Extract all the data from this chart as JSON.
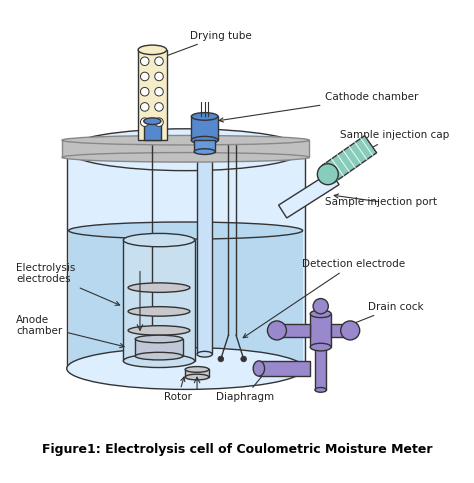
{
  "title": "Figure1: Electrolysis cell of Coulometric Moisture Meter",
  "bg_color": "#ffffff",
  "fig_width": 4.74,
  "fig_height": 4.83,
  "labels": {
    "drying_tube": "Drying tube",
    "cathode_chamber": "Cathode chamber",
    "sample_injection_cap": "Sample injection cap",
    "sample_injection_port": "Sample injection port",
    "detection_electrode": "Detection electrode",
    "electrolysis_electrodes": "Electrolysis\nelectrodes",
    "anode_chamber": "Anode\nchamber",
    "rotor": "Rotor",
    "diaphragm": "Diaphragm",
    "drain_cock": "Drain cock"
  },
  "colors": {
    "vessel_outline": "#444444",
    "vessel_fill": "#ddeeff",
    "liquid_fill": "#b8d8f0",
    "liquid_dark": "#9ac8e8",
    "lid_fill": "#c0c0c0",
    "lid_edge": "#888888",
    "drying_tube_fill": "#f5ecc8",
    "blue_top": "#5588cc",
    "blue_mid": "#6699dd",
    "cathode_fill": "#c8e0f8",
    "green_cap_fill": "#88ccbb",
    "green_cap_dark": "#66aa99",
    "purple_fill": "#9988cc",
    "purple_dark": "#7766aa",
    "inner_vessel_fill": "#c8dff0",
    "electrode_fill": "#c8c8cc",
    "anode_fill": "#c0c8d8",
    "text_color": "#222222",
    "line_color": "#333333",
    "wire_color": "#555555"
  }
}
